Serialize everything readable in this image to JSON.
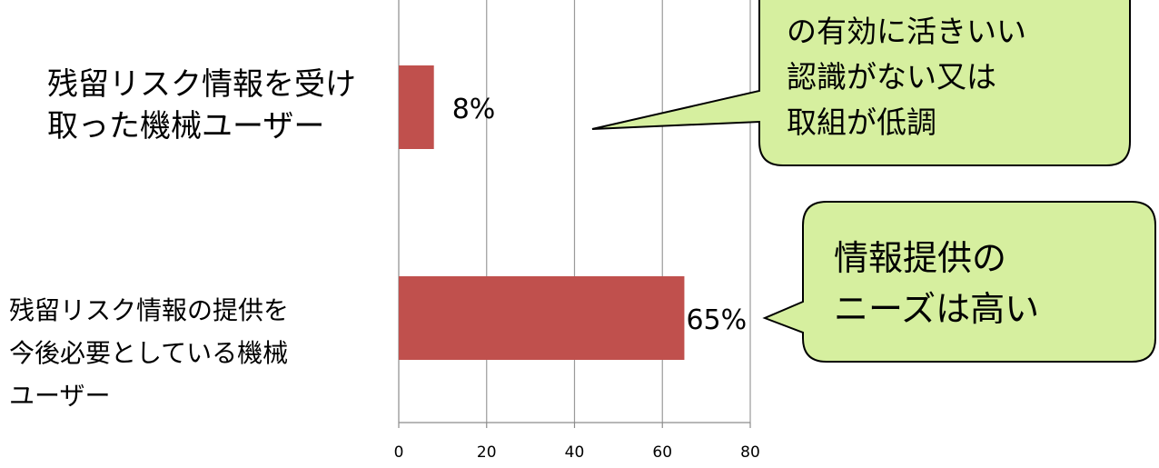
{
  "chart_data": {
    "type": "bar",
    "orientation": "horizontal",
    "categories": [
      "残留リスク情報を受け\n取った機械ユーザー",
      "残留リスク情報の提供を\n今後必要としている機械\nユーザー"
    ],
    "values": [
      8,
      65
    ],
    "data_labels": [
      "8%",
      "65%"
    ],
    "xlim": [
      0,
      80
    ],
    "xticks": [
      0,
      20,
      40,
      60,
      80
    ],
    "grid": true,
    "bar_color": "#c0504d"
  },
  "callouts": [
    {
      "text": "の有効に活きいい\n認識がない又は\n取組が低調",
      "fill": "#d6ef9f",
      "border": "#000000"
    },
    {
      "text": "情報提供の\nニーズは高い",
      "fill": "#d6ef9f",
      "border": "#000000"
    }
  ]
}
